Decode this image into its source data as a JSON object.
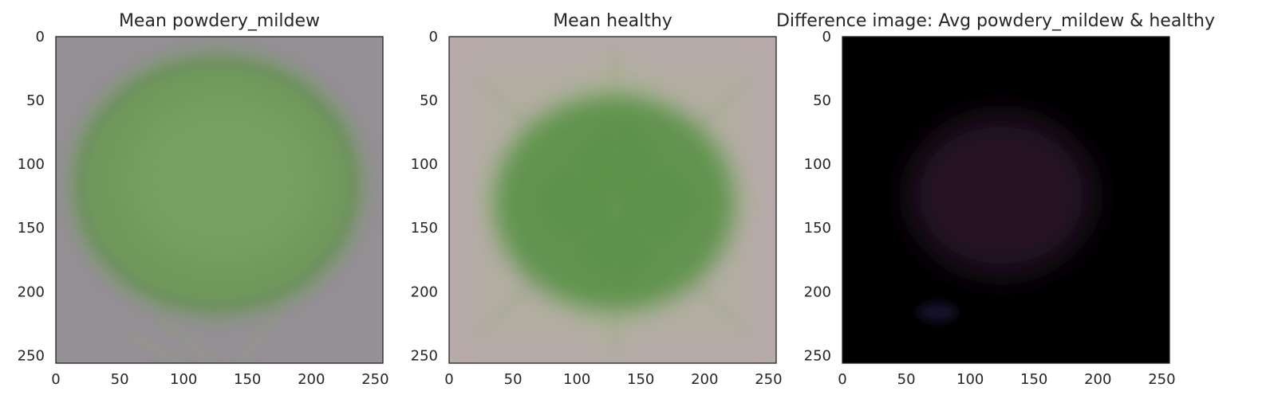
{
  "chart_data": [
    {
      "type": "image",
      "title": "Mean powdery_mildew",
      "xlabel": "",
      "ylabel": "",
      "xlim": [
        0,
        256
      ],
      "ylim": [
        256,
        0
      ],
      "xticks": [
        0,
        50,
        100,
        150,
        200,
        250
      ],
      "yticks": [
        0,
        50,
        100,
        150,
        200,
        250
      ],
      "xtick_labels": [
        "0",
        "50",
        "100",
        "150",
        "200",
        "250"
      ],
      "ytick_labels": [
        "0",
        "50",
        "100",
        "150",
        "200",
        "250"
      ],
      "background_color": "#958f96",
      "leaf_color": "#6d9a58",
      "leaf_shape": "round"
    },
    {
      "type": "image",
      "title": "Mean healthy",
      "xlabel": "",
      "ylabel": "",
      "xlim": [
        0,
        256
      ],
      "ylim": [
        256,
        0
      ],
      "xticks": [
        0,
        50,
        100,
        150,
        200,
        250
      ],
      "yticks": [
        0,
        50,
        100,
        150,
        200,
        250
      ],
      "xtick_labels": [
        "0",
        "50",
        "100",
        "150",
        "200",
        "250"
      ],
      "ytick_labels": [
        "0",
        "50",
        "100",
        "150",
        "200",
        "250"
      ],
      "background_color": "#b7aaa9",
      "leaf_color": "#5c9248",
      "leaf_shape": "diamond"
    },
    {
      "type": "image",
      "title": "Difference image: Avg powdery_mildew & healthy",
      "xlabel": "",
      "ylabel": "",
      "xlim": [
        0,
        256
      ],
      "ylim": [
        256,
        0
      ],
      "xticks": [
        0,
        50,
        100,
        150,
        200,
        250
      ],
      "yticks": [
        0,
        50,
        100,
        150,
        200,
        250
      ],
      "xtick_labels": [
        "0",
        "50",
        "100",
        "150",
        "200",
        "250"
      ],
      "ytick_labels": [
        "0",
        "50",
        "100",
        "150",
        "200",
        "250"
      ],
      "background_color": "#000000",
      "leaf_color": "#2a1629",
      "leaf_shape": "faint"
    }
  ]
}
